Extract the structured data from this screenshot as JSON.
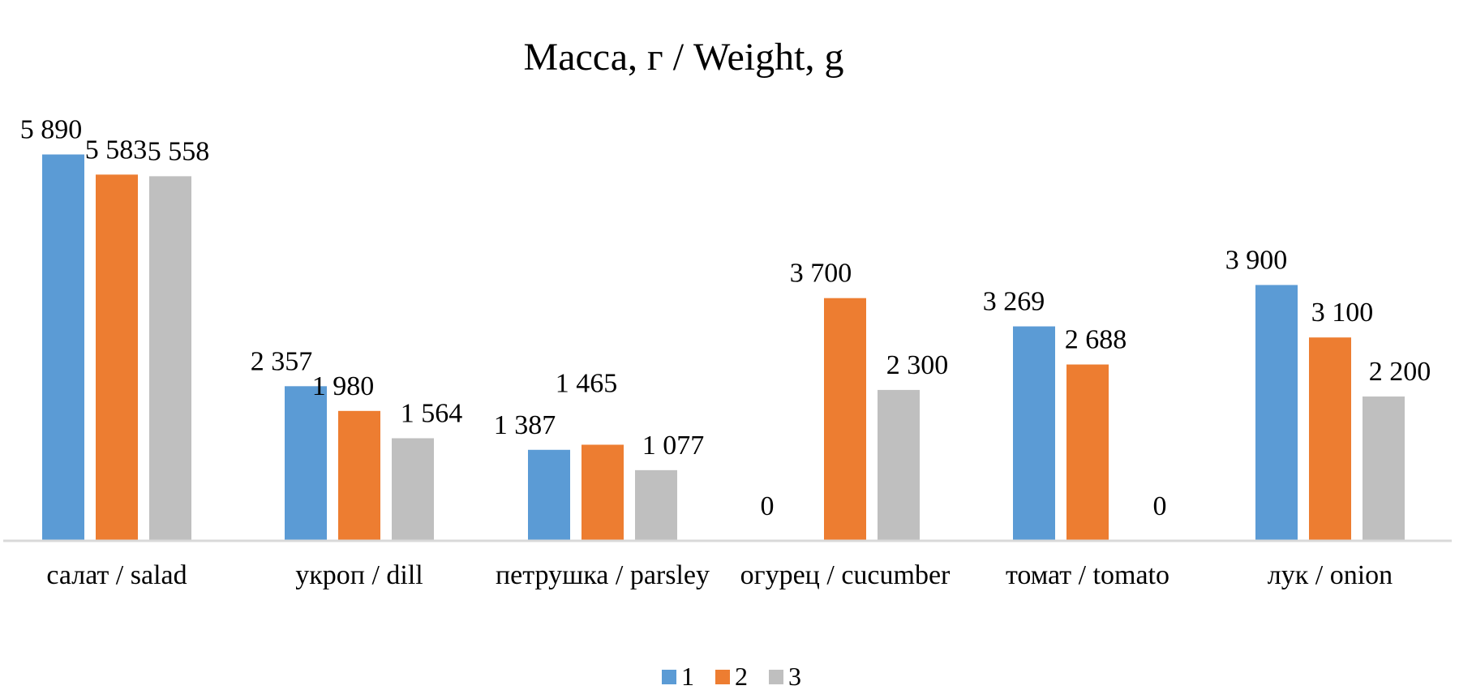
{
  "chart_data": {
    "type": "bar",
    "title": "Масса, г / Weight, g",
    "xlabel": "",
    "ylabel": "",
    "ylim": [
      0,
      6000
    ],
    "grid": false,
    "legend_position": "bottom",
    "categories": [
      "салат / salad",
      "укроп / dill",
      "петрушка / parsley",
      "огурец / cucumber",
      "томат / tomato",
      "лук / onion"
    ],
    "series": [
      {
        "name": "1",
        "color": "#5B9BD5",
        "values": [
          5890,
          2357,
          1387,
          0,
          3269,
          3900
        ],
        "labels": [
          "5 890",
          "2 357",
          "1 387",
          "0",
          "3 269",
          "3 900"
        ]
      },
      {
        "name": "2",
        "color": "#ED7D31",
        "values": [
          5583,
          1980,
          1465,
          3700,
          2688,
          3100
        ],
        "labels": [
          "5 583",
          "1 980",
          "1 465",
          "3 700",
          "2 688",
          "3 100"
        ]
      },
      {
        "name": "3",
        "color": "#BFBFBF",
        "values": [
          5558,
          1564,
          1077,
          2300,
          0,
          2200
        ],
        "labels": [
          "5 558",
          "1 564",
          "1 077",
          "2 300",
          "0",
          "2 200"
        ]
      }
    ]
  }
}
